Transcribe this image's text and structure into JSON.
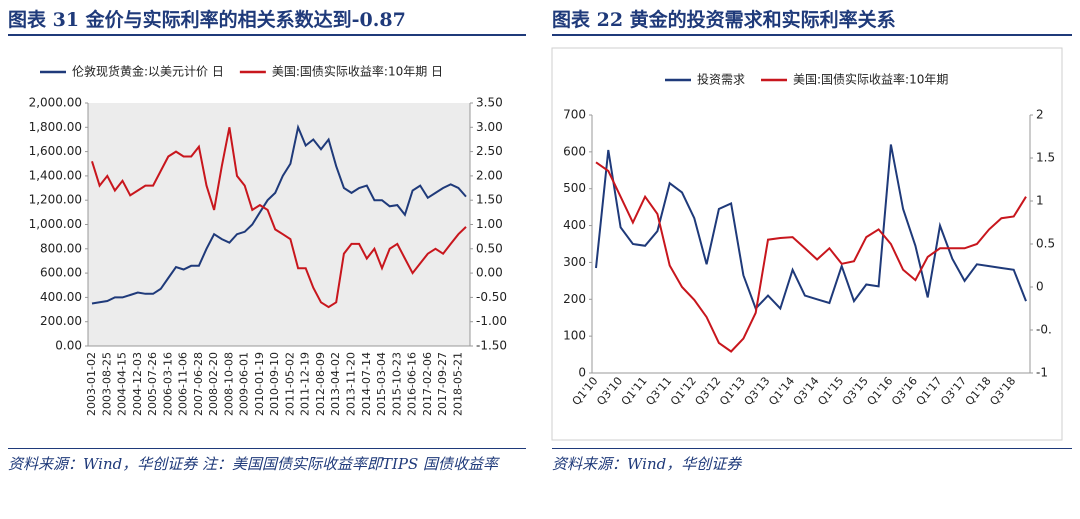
{
  "chart_data": [
    {
      "type": "line",
      "title": "图表 31   金价与实际利率的相关系数达到-0.87",
      "source": "资料来源：Wind，华创证券  注：美国国债实际收益率即TIPS 国债收益率",
      "categories": [
        "2003-01-02",
        null,
        "2003-08-25",
        null,
        "2004-04-15",
        null,
        "2004-12-03",
        null,
        "2005-07-26",
        null,
        "2006-03-16",
        null,
        "2006-11-06",
        null,
        "2007-06-28",
        null,
        "2008-02-20",
        null,
        "2008-10-08",
        null,
        "2009-06-01",
        null,
        "2010-01-19",
        null,
        "2010-09-10",
        null,
        "2011-05-02",
        null,
        "2011-12-19",
        null,
        "2012-08-09",
        null,
        "2013-04-02",
        null,
        "2013-11-20",
        null,
        "2014-07-14",
        null,
        "2015-03-04",
        null,
        "2015-10-23",
        null,
        "2016-06-16",
        null,
        "2017-02-06",
        null,
        "2017-09-27",
        null,
        "2018-05-21",
        null
      ],
      "series": [
        {
          "name": "伦敦现货黄金:以美元计价 日",
          "color": "#1f3a7a",
          "values": [
            350,
            360,
            370,
            400,
            400,
            420,
            440,
            430,
            430,
            470,
            560,
            650,
            630,
            660,
            660,
            800,
            920,
            880,
            850,
            920,
            940,
            1000,
            1100,
            1200,
            1260,
            1400,
            1500,
            1800,
            1650,
            1700,
            1620,
            1700,
            1480,
            1300,
            1260,
            1300,
            1320,
            1200,
            1200,
            1150,
            1160,
            1080,
            1280,
            1320,
            1220,
            1260,
            1300,
            1330,
            1300,
            1230
          ]
        },
        {
          "name": "美国:国债实际收益率:10年期 日",
          "color": "#c8161d",
          "axis": "y2",
          "values": [
            2.3,
            1.8,
            2.0,
            1.7,
            1.9,
            1.6,
            1.7,
            1.8,
            1.8,
            2.1,
            2.4,
            2.5,
            2.4,
            2.4,
            2.6,
            1.8,
            1.3,
            2.2,
            3.0,
            2.0,
            1.8,
            1.3,
            1.4,
            1.3,
            0.9,
            0.8,
            0.7,
            0.1,
            0.1,
            -0.3,
            -0.6,
            -0.7,
            -0.6,
            0.4,
            0.6,
            0.6,
            0.3,
            0.5,
            0.1,
            0.5,
            0.6,
            0.3,
            0.0,
            0.2,
            0.4,
            0.5,
            0.4,
            0.6,
            0.8,
            0.95
          ]
        }
      ],
      "ylim": [
        0,
        2000
      ],
      "yticks": [
        {
          "value": 0,
          "label": "0.00"
        },
        {
          "value": 200,
          "label": "200.00"
        },
        {
          "value": 400,
          "label": "400.00"
        },
        {
          "value": 600,
          "label": "600.00"
        },
        {
          "value": 800,
          "label": "800.00"
        },
        {
          "value": 1000,
          "label": "1,000.00"
        },
        {
          "value": 1200,
          "label": "1,200.00"
        },
        {
          "value": 1400,
          "label": "1,400.00"
        },
        {
          "value": 1600,
          "label": "1,600.00"
        },
        {
          "value": 1800,
          "label": "1,800.00"
        },
        {
          "value": 2000,
          "label": "2,000.00"
        }
      ],
      "y2lim": [
        -1.5,
        3.5
      ],
      "y2ticks": [
        {
          "value": -1.5,
          "label": "-1.50"
        },
        {
          "value": -1,
          "label": "-1.00"
        },
        {
          "value": -0.5,
          "label": "-0.50"
        },
        {
          "value": 0,
          "label": "0.00"
        },
        {
          "value": 0.5,
          "label": "0.50"
        },
        {
          "value": 1,
          "label": "1.00"
        },
        {
          "value": 1.5,
          "label": "1.50"
        },
        {
          "value": 2,
          "label": "2.00"
        },
        {
          "value": 2.5,
          "label": "2.50"
        },
        {
          "value": 3,
          "label": "3.00"
        },
        {
          "value": 3.5,
          "label": "3.50"
        }
      ],
      "legend": "top"
    },
    {
      "type": "line",
      "title": "图表 22   黄金的投资需求和实际利率关系",
      "source": "资料来源：Wind，华创证券",
      "categories": [
        "Q1'10",
        null,
        "Q3'10",
        null,
        "Q1'11",
        null,
        "Q3'11",
        null,
        "Q1'12",
        null,
        "Q3'12",
        null,
        "Q1'13",
        null,
        "Q3'13",
        null,
        "Q1'14",
        null,
        "Q3'14",
        null,
        "Q1'15",
        null,
        "Q3'15",
        null,
        "Q1'16",
        null,
        "Q3'16",
        null,
        "Q1'17",
        null,
        "Q3'17",
        null,
        "Q1'18",
        null,
        "Q3'18",
        null
      ],
      "series": [
        {
          "name": "投资需求",
          "color": "#1f3a7a",
          "values": [
            285,
            605,
            395,
            350,
            345,
            385,
            515,
            490,
            420,
            295,
            445,
            460,
            265,
            175,
            210,
            175,
            280,
            210,
            200,
            190,
            290,
            195,
            240,
            235,
            620,
            445,
            345,
            205,
            400,
            310,
            250,
            295,
            290,
            285,
            280,
            195
          ]
        },
        {
          "name": "美国:国债实际收益率:10年期",
          "color": "#c8161d",
          "axis": "y2",
          "values": [
            1.45,
            1.35,
            1.05,
            0.75,
            1.05,
            0.85,
            0.25,
            0.0,
            -0.15,
            -0.35,
            -0.65,
            -0.75,
            -0.6,
            -0.3,
            0.55,
            0.57,
            0.58,
            0.45,
            0.32,
            0.45,
            0.27,
            0.3,
            0.58,
            0.67,
            0.5,
            0.2,
            0.08,
            0.35,
            0.45,
            0.45,
            0.45,
            0.5,
            0.67,
            0.8,
            0.82,
            1.05
          ]
        }
      ],
      "ylim": [
        0,
        700
      ],
      "yticks": [
        0,
        100,
        200,
        300,
        400,
        500,
        600,
        700
      ],
      "y2lim": [
        -1,
        2
      ],
      "y2ticks": [
        -1,
        {
          "value": -0.5,
          "label": "-0."
        },
        0,
        {
          "value": 0.5,
          "label": "0.5"
        },
        1,
        {
          "value": 1.5,
          "label": "1.5"
        },
        2
      ],
      "legend": "top"
    }
  ]
}
